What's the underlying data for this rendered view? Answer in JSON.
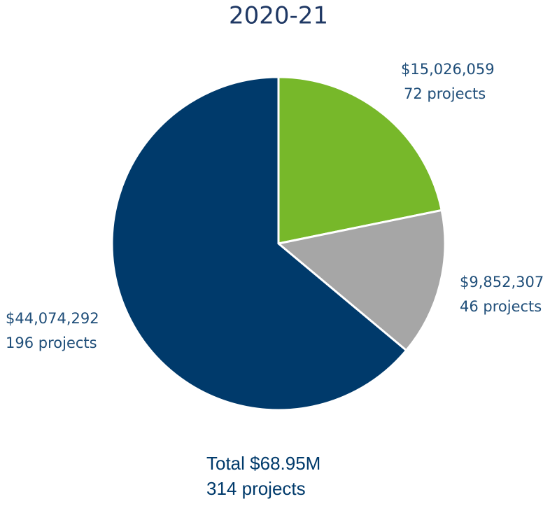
{
  "chart_data": {
    "type": "pie",
    "title": "2020-21",
    "values": [
      15026059,
      9852307,
      44074292
    ],
    "value_labels": [
      "$15,026,059",
      "$9,852,307",
      "$44,074,292"
    ],
    "project_labels": [
      "72 projects",
      "46 projects",
      "196 projects"
    ],
    "colors": [
      "#77b82a",
      "#a6a6a6",
      "#003a6b"
    ],
    "annotations": [
      "Total $68.95M",
      "314 projects"
    ]
  }
}
